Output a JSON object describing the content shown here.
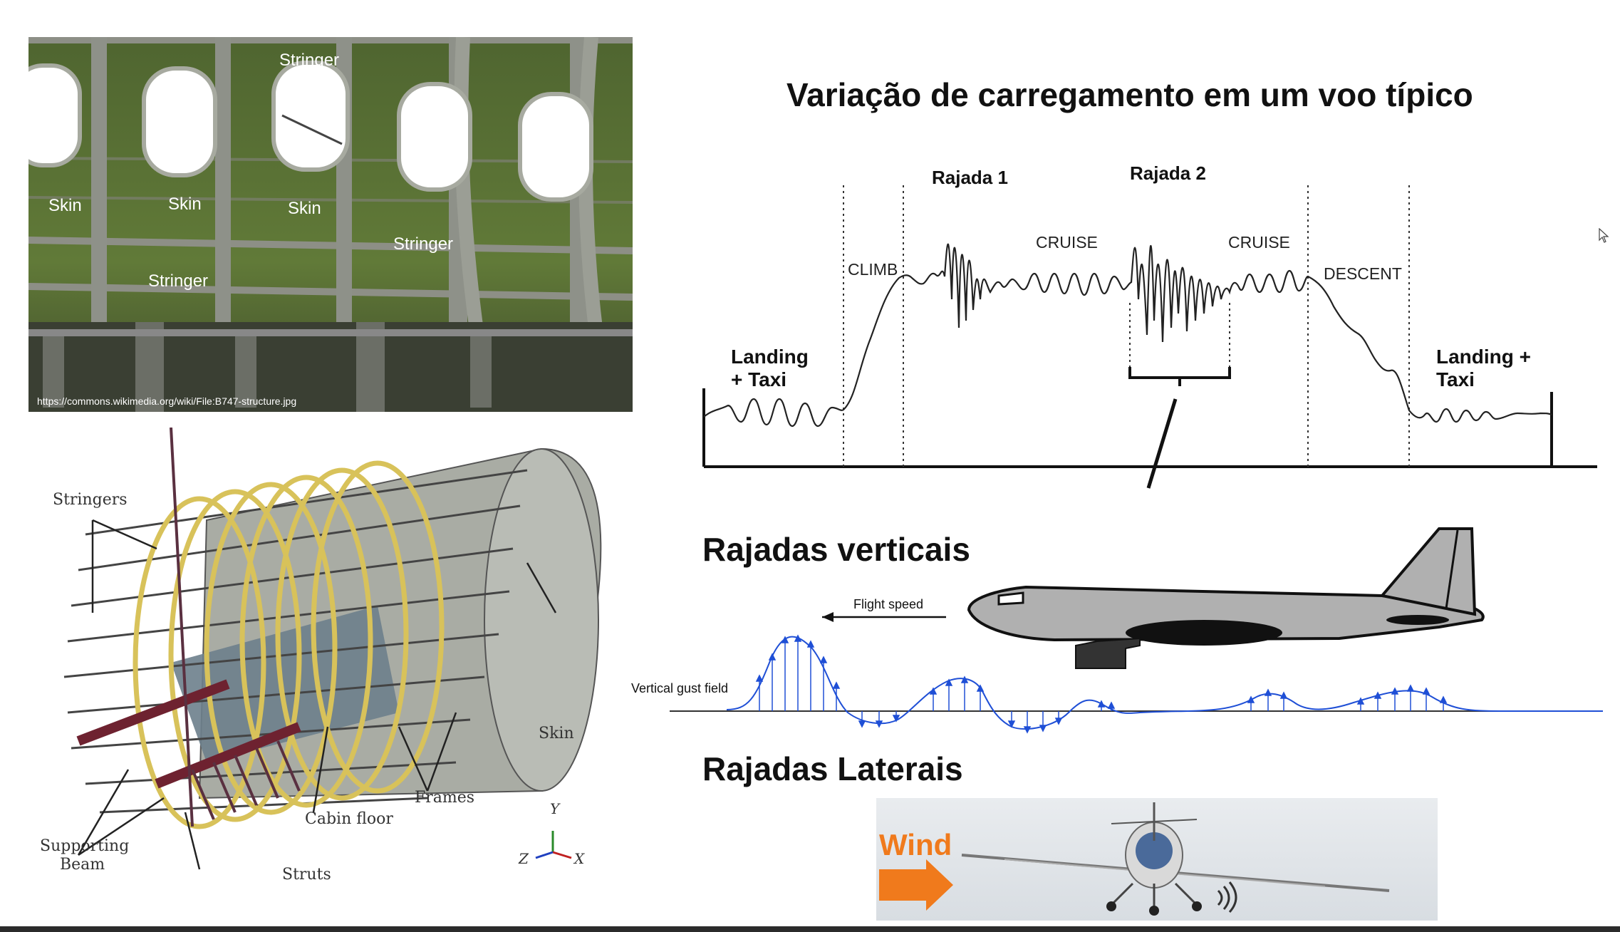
{
  "photo": {
    "labels": {
      "stringer_top": "Stringer",
      "skin_1": "Skin",
      "skin_2": "Skin",
      "skin_3": "Skin",
      "stringer_right": "Stringer",
      "stringer_bottom": "Stringer"
    },
    "credit": "https://commons.wikimedia.org/wiki/File:B747-structure.jpg"
  },
  "fuselage": {
    "labels": {
      "stringers": "Stringers",
      "skin": "Skin",
      "frames": "Frames",
      "cabin_floor": "Cabin floor",
      "supporting_beam_1": "Supporting",
      "supporting_beam_2": "Beam",
      "struts": "Struts"
    },
    "axes": {
      "y": "Y",
      "z": "Z",
      "x": "X"
    }
  },
  "flight_profile": {
    "title": "Variação de carregamento em um voo típico",
    "landing_left_1": "Landing",
    "landing_left_2": "+ Taxi",
    "landing_right_1": "Landing +",
    "landing_right_2": "Taxi",
    "climb": "CLIMB",
    "cruise_1": "CRUISE",
    "cruise_2": "CRUISE",
    "descent": "DESCENT",
    "rajada_1": "Rajada 1",
    "rajada_2": "Rajada 2"
  },
  "vertical_gusts": {
    "heading": "Rajadas verticais",
    "flight_speed": "Flight speed",
    "gust_field": "Vertical gust field"
  },
  "lateral_gusts": {
    "heading": "Rajadas Laterais",
    "wind": "Wind"
  },
  "colors": {
    "photo_green": "#5e7236",
    "gust_blue": "#1f4fd6",
    "frame_yellow": "#d8c25a",
    "beam_red": "#6e2230",
    "wind_orange": "#f07a1c"
  }
}
